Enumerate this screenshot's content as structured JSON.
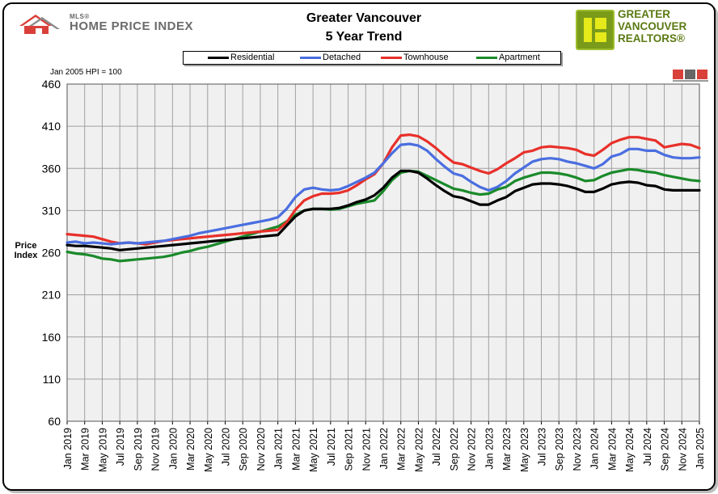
{
  "header": {
    "mls_small": "MLS®",
    "mls_big": "HOME PRICE INDEX",
    "title_line1": "Greater Vancouver",
    "title_line2": "5 Year Trend",
    "gv_line1": "GREATER",
    "gv_line2": "VANCOUVER",
    "gv_line3": "REALTORS®"
  },
  "note": "Jan 2005 HPI = 100",
  "ylabel_line1": "Price",
  "ylabel_line2": "Index",
  "colors": {
    "Residential": "#000000",
    "Detached": "#4a6ee0",
    "Townhouse": "#e8302a",
    "Apartment": "#1a8a2a",
    "plot_bg": "#f0f0f0",
    "grid": "#a0a0a0"
  },
  "chart_data": {
    "type": "line",
    "title": "Greater Vancouver 5 Year Trend",
    "ylabel": "Price Index",
    "ylim": [
      60,
      460
    ],
    "yticks": [
      460,
      410,
      360,
      310,
      260,
      210,
      160,
      110,
      60
    ],
    "grid": true,
    "legend_position": "top",
    "xtick_labels": [
      "Jan 2019",
      "Mar 2019",
      "May 2019",
      "Jul 2019",
      "Sep 2019",
      "Nov 2019",
      "Jan 2020",
      "Mar 2020",
      "May 2020",
      "Jul 2020",
      "Sep 2020",
      "Nov 2020",
      "Jan 2021",
      "Mar 2021",
      "May 2021",
      "Jul 2021",
      "Sep 2021",
      "Nov 2021",
      "Jan 2022",
      "Mar 2022",
      "May 2022",
      "Jul 2022",
      "Sep 2022",
      "Nov 2022",
      "Jan 2023",
      "Mar 2023",
      "May 2023",
      "Jul 2023",
      "Sep 2023",
      "Nov 2023",
      "Jan 2024",
      "Mar 2024",
      "May 2024",
      "Jul 2024",
      "Sep 2024",
      "Nov 2024",
      "Jan 2025"
    ],
    "x_months": [
      "Jan 2019",
      "Feb 2019",
      "Mar 2019",
      "Apr 2019",
      "May 2019",
      "Jun 2019",
      "Jul 2019",
      "Aug 2019",
      "Sep 2019",
      "Oct 2019",
      "Nov 2019",
      "Dec 2019",
      "Jan 2020",
      "Feb 2020",
      "Mar 2020",
      "Apr 2020",
      "May 2020",
      "Jun 2020",
      "Jul 2020",
      "Aug 2020",
      "Sep 2020",
      "Oct 2020",
      "Nov 2020",
      "Dec 2020",
      "Jan 2021",
      "Feb 2021",
      "Mar 2021",
      "Apr 2021",
      "May 2021",
      "Jun 2021",
      "Jul 2021",
      "Aug 2021",
      "Sep 2021",
      "Oct 2021",
      "Nov 2021",
      "Dec 2021",
      "Jan 2022",
      "Feb 2022",
      "Mar 2022",
      "Apr 2022",
      "May 2022",
      "Jun 2022",
      "Jul 2022",
      "Aug 2022",
      "Sep 2022",
      "Oct 2022",
      "Nov 2022",
      "Dec 2022",
      "Jan 2023",
      "Feb 2023",
      "Mar 2023",
      "Apr 2023",
      "May 2023",
      "Jun 2023",
      "Jul 2023",
      "Aug 2023",
      "Sep 2023",
      "Oct 2023",
      "Nov 2023",
      "Dec 2023",
      "Jan 2024",
      "Feb 2024",
      "Mar 2024",
      "Apr 2024",
      "May 2024",
      "Jun 2024",
      "Jul 2024",
      "Aug 2024",
      "Sep 2024",
      "Oct 2024",
      "Nov 2024",
      "Dec 2024",
      "Jan 2025"
    ],
    "series": [
      {
        "name": "Residential",
        "values": [
          269,
          268,
          268,
          267,
          266,
          265,
          263,
          264,
          265,
          266,
          267,
          268,
          269,
          270,
          271,
          272,
          273,
          274,
          275,
          276,
          277,
          278,
          279,
          280,
          281,
          292,
          303,
          310,
          312,
          312,
          312,
          313,
          316,
          320,
          323,
          328,
          337,
          349,
          357,
          357,
          355,
          348,
          340,
          333,
          327,
          325,
          321,
          317,
          317,
          322,
          326,
          333,
          337,
          341,
          342,
          342,
          341,
          339,
          336,
          332,
          332,
          336,
          341,
          343,
          344,
          343,
          340,
          339,
          335,
          334,
          334,
          334,
          334
        ]
      },
      {
        "name": "Detached",
        "values": [
          272,
          273,
          271,
          272,
          271,
          270,
          271,
          272,
          271,
          272,
          273,
          274,
          276,
          278,
          280,
          283,
          285,
          287,
          289,
          291,
          293,
          295,
          297,
          299,
          302,
          312,
          326,
          335,
          337,
          335,
          334,
          335,
          339,
          344,
          349,
          355,
          366,
          378,
          388,
          389,
          387,
          381,
          371,
          362,
          354,
          351,
          344,
          338,
          334,
          338,
          345,
          354,
          361,
          368,
          371,
          372,
          371,
          368,
          366,
          363,
          360,
          365,
          374,
          377,
          383,
          383,
          381,
          381,
          376,
          373,
          372,
          372,
          373
        ]
      },
      {
        "name": "Townhouse",
        "values": [
          282,
          281,
          280,
          279,
          276,
          273,
          271,
          272,
          271,
          270,
          272,
          274,
          275,
          276,
          277,
          278,
          279,
          280,
          281,
          282,
          283,
          284,
          285,
          286,
          287,
          296,
          311,
          322,
          327,
          330,
          330,
          331,
          334,
          340,
          347,
          353,
          366,
          385,
          399,
          400,
          398,
          392,
          384,
          375,
          367,
          365,
          361,
          357,
          354,
          359,
          366,
          372,
          379,
          381,
          385,
          386,
          385,
          384,
          382,
          377,
          375,
          382,
          390,
          394,
          397,
          397,
          395,
          393,
          385,
          387,
          389,
          388,
          384
        ]
      },
      {
        "name": "Apartment",
        "values": [
          261,
          259,
          258,
          256,
          253,
          252,
          250,
          251,
          252,
          253,
          254,
          255,
          257,
          260,
          262,
          265,
          267,
          270,
          273,
          276,
          279,
          282,
          285,
          288,
          291,
          297,
          305,
          310,
          312,
          312,
          311,
          312,
          315,
          318,
          320,
          322,
          333,
          346,
          355,
          357,
          356,
          351,
          346,
          341,
          336,
          334,
          331,
          329,
          330,
          335,
          338,
          345,
          349,
          352,
          355,
          355,
          354,
          352,
          349,
          345,
          346,
          351,
          355,
          357,
          359,
          358,
          356,
          355,
          352,
          350,
          348,
          346,
          345
        ]
      }
    ]
  }
}
